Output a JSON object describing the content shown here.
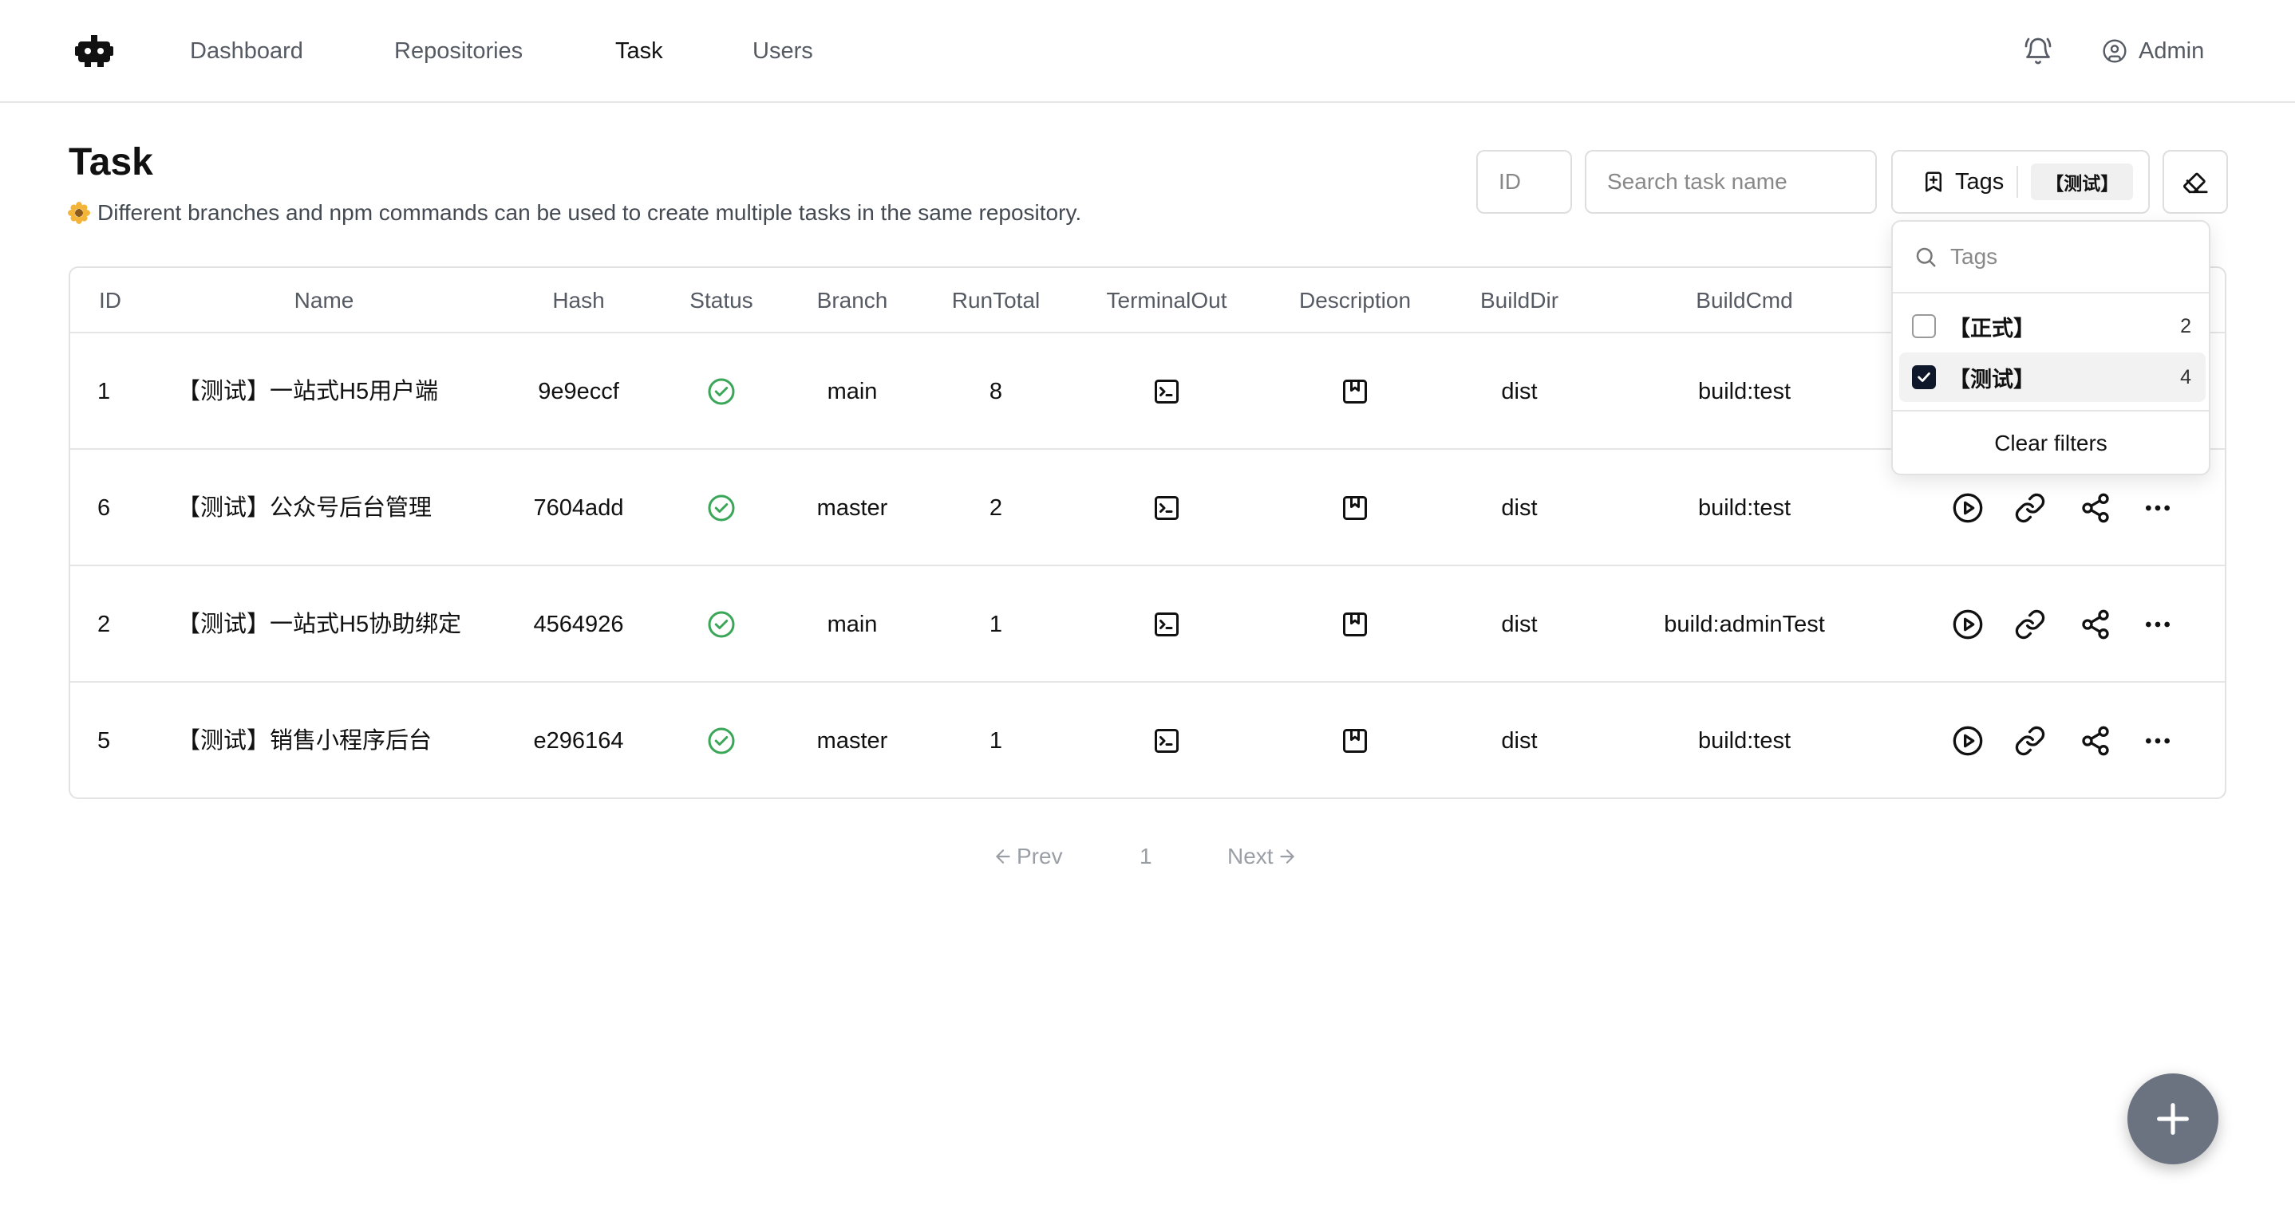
{
  "header": {
    "nav": [
      {
        "label": "Dashboard",
        "active": false
      },
      {
        "label": "Repositories",
        "active": false
      },
      {
        "label": "Task",
        "active": true
      },
      {
        "label": "Users",
        "active": false
      }
    ],
    "user_name": "Admin",
    "icons": {
      "logo": "robot-logo-icon",
      "bell": "bell-icon",
      "user": "user-circle-icon"
    }
  },
  "page": {
    "title": "Task",
    "description": "Different branches and npm commands can be used to create multiple tasks in the same repository."
  },
  "filters": {
    "id_placeholder": "ID",
    "search_placeholder": "Search task name",
    "tags_label": "Tags",
    "selected_tag": "【测试】"
  },
  "tags_dropdown": {
    "search_placeholder": "Tags",
    "options": [
      {
        "label": "【正式】",
        "count": "2",
        "checked": false
      },
      {
        "label": "【测试】",
        "count": "4",
        "checked": true
      }
    ],
    "clear_label": "Clear filters"
  },
  "table": {
    "columns": [
      "ID",
      "Name",
      "Hash",
      "Status",
      "Branch",
      "RunTotal",
      "TerminalOut",
      "Description",
      "BuildDir",
      "BuildCmd"
    ],
    "rows": [
      {
        "id": "1",
        "name": "【测试】一站式H5用户端",
        "hash": "9e9eccf",
        "status": "success",
        "branch": "main",
        "run_total": "8",
        "build_dir": "dist",
        "build_cmd": "build:test"
      },
      {
        "id": "6",
        "name": "【测试】公众号后台管理",
        "hash": "7604add",
        "status": "success",
        "branch": "master",
        "run_total": "2",
        "build_dir": "dist",
        "build_cmd": "build:test"
      },
      {
        "id": "2",
        "name": "【测试】一站式H5协助绑定",
        "hash": "4564926",
        "status": "success",
        "branch": "main",
        "run_total": "1",
        "build_dir": "dist",
        "build_cmd": "build:adminTest"
      },
      {
        "id": "5",
        "name": "【测试】销售小程序后台",
        "hash": "e296164",
        "status": "success",
        "branch": "master",
        "run_total": "1",
        "build_dir": "dist",
        "build_cmd": "build:test"
      }
    ]
  },
  "pagination": {
    "prev_label": "Prev",
    "current_page": "1",
    "next_label": "Next"
  },
  "colors": {
    "success": "#3aa657",
    "fab": "#6b7280",
    "checkbox_checked": "#0f172a"
  }
}
